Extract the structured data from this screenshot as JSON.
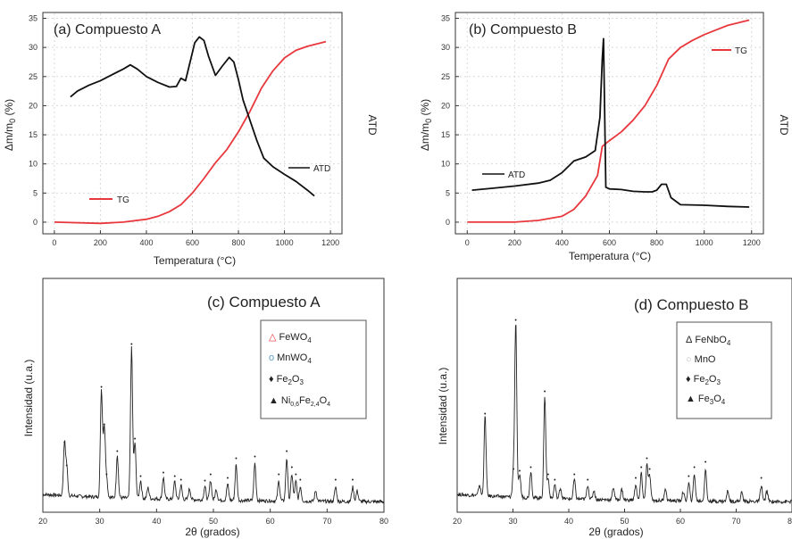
{
  "figure": {
    "panels": [
      {
        "id": "a",
        "title": "(a) Compuesto A",
        "xlabel": "Temperatura (°C)",
        "ylabel": "Δm/m",
        "ylabel_sub": "0",
        "ylabel_unit": " (%)",
        "right_label": "ATD",
        "legend": [
          {
            "label": "TG",
            "color": "#e8383d"
          },
          {
            "label": "ATD",
            "color": "#111111"
          }
        ]
      },
      {
        "id": "b",
        "title": "(b) Compuesto B",
        "xlabel": "Temperatura (°C)",
        "ylabel": "Δm/m",
        "ylabel_sub": "0",
        "ylabel_unit": " (%)",
        "right_label": "ATD",
        "legend": [
          {
            "label": "TG",
            "color": "#e8383d"
          },
          {
            "label": "ATD",
            "color": "#111111"
          }
        ]
      },
      {
        "id": "c",
        "title": "(c) Compuesto A",
        "xlabel": "2θ (grados)",
        "ylabel": "Intensidad (u.a.)",
        "legend_items": [
          {
            "marker": "△",
            "color": "#e8383d",
            "base": "FeWO",
            "sub": "4",
            "rest": ""
          },
          {
            "marker": "o",
            "color": "#5aa0c8",
            "base": "MnWO",
            "sub": "4",
            "rest": ""
          },
          {
            "marker": "♦",
            "color": "#111111",
            "base": "Fe",
            "sub": "2",
            "rest": "O",
            "sub2": "3"
          },
          {
            "marker": "▲",
            "color": "#111111",
            "base": "Ni",
            "sub": "0,6",
            "rest": "Fe",
            "sub2": "2,4",
            "rest2": "O",
            "sub3": "4"
          }
        ]
      },
      {
        "id": "d",
        "title": "(d) Compuesto B",
        "xlabel": "2θ (grados)",
        "ylabel": "Intensidad (u.a.)",
        "legend_items": [
          {
            "marker": "Δ",
            "color": "#111111",
            "base": "FeNbO",
            "sub": "4",
            "rest": ""
          },
          {
            "marker": "○",
            "color": "#bbbbbb",
            "base": "MnO",
            "sub": "",
            "rest": ""
          },
          {
            "marker": "♦",
            "color": "#111111",
            "base": "Fe",
            "sub": "2",
            "rest": "O",
            "sub2": "3"
          },
          {
            "marker": "▲",
            "color": "#111111",
            "base": "Fe",
            "sub": "3",
            "rest": "O",
            "sub2": "4"
          }
        ]
      }
    ]
  },
  "chart_data": [
    {
      "type": "line",
      "title": "(a) Compuesto A",
      "xlabel": "Temperatura (°C)",
      "ylabel": "Δm/m0 (%)",
      "xlim": [
        -50,
        1250
      ],
      "ylim": [
        -2,
        36
      ],
      "xticks": [
        0,
        200,
        400,
        600,
        800,
        1000,
        1200
      ],
      "yticks": [
        0,
        5,
        10,
        15,
        20,
        25,
        30,
        35
      ],
      "series": [
        {
          "name": "TG",
          "color": "#e8383d",
          "x": [
            0,
            200,
            300,
            400,
            450,
            500,
            550,
            600,
            650,
            700,
            750,
            800,
            850,
            900,
            950,
            1000,
            1050,
            1100,
            1150,
            1180
          ],
          "y": [
            0,
            -0.2,
            0,
            0.5,
            1.0,
            1.8,
            3.0,
            5.0,
            7.5,
            10.2,
            12.5,
            15.5,
            19.0,
            23.0,
            26.0,
            28.2,
            29.5,
            30.2,
            30.7,
            31.0
          ]
        },
        {
          "name": "ATD",
          "color": "#111111",
          "x": [
            70,
            100,
            150,
            200,
            250,
            300,
            330,
            360,
            400,
            450,
            500,
            530,
            550,
            570,
            590,
            610,
            630,
            650,
            670,
            700,
            730,
            760,
            780,
            800,
            820,
            850,
            880,
            910,
            950,
            1000,
            1050,
            1100,
            1130
          ],
          "y": [
            21.5,
            22.5,
            23.5,
            24.3,
            25.3,
            26.3,
            27.0,
            26.3,
            25.0,
            24.0,
            23.2,
            23.3,
            24.7,
            24.3,
            27.5,
            30.8,
            31.8,
            31.2,
            28.5,
            25.2,
            26.8,
            28.3,
            27.5,
            24.5,
            21.0,
            17.5,
            14.0,
            11.0,
            9.5,
            8.2,
            7.0,
            5.5,
            4.5
          ]
        }
      ]
    },
    {
      "type": "line",
      "title": "(b) Compuesto B",
      "xlabel": "Temperatura (°C)",
      "ylabel": "Δm/m0 (%)",
      "xlim": [
        -50,
        1250
      ],
      "ylim": [
        -2,
        36
      ],
      "xticks": [
        0,
        200,
        400,
        600,
        800,
        1000,
        1200
      ],
      "yticks": [
        0,
        5,
        10,
        15,
        20,
        25,
        30,
        35
      ],
      "series": [
        {
          "name": "TG",
          "color": "#e8383d",
          "x": [
            0,
            200,
            300,
            400,
            450,
            500,
            550,
            570,
            600,
            650,
            700,
            750,
            800,
            850,
            900,
            950,
            1000,
            1050,
            1100,
            1150,
            1190
          ],
          "y": [
            0,
            0,
            0.3,
            1.0,
            2.2,
            4.5,
            8.0,
            13.0,
            14.0,
            15.5,
            17.5,
            20.0,
            23.5,
            28.0,
            30.0,
            31.2,
            32.2,
            33.0,
            33.8,
            34.3,
            34.7
          ]
        },
        {
          "name": "ATD",
          "color": "#111111",
          "x": [
            20,
            100,
            200,
            300,
            350,
            400,
            450,
            500,
            540,
            560,
            570,
            575,
            585,
            600,
            650,
            700,
            750,
            780,
            800,
            820,
            840,
            860,
            900,
            1000,
            1100,
            1190
          ],
          "y": [
            5.5,
            5.8,
            6.2,
            6.7,
            7.2,
            8.5,
            10.5,
            11.2,
            12.3,
            18.0,
            28.0,
            31.5,
            6.0,
            5.7,
            5.6,
            5.3,
            5.2,
            5.2,
            5.5,
            6.5,
            6.5,
            4.2,
            3.0,
            2.9,
            2.7,
            2.6
          ]
        }
      ]
    },
    {
      "type": "line",
      "title": "(c) Compuesto A",
      "xlabel": "2θ (grados)",
      "ylabel": "Intensidad (u.a.)",
      "xlim": [
        20,
        80
      ],
      "xticks": [
        20,
        30,
        40,
        50,
        60,
        70,
        80
      ],
      "baseline": 9,
      "peaks": [
        {
          "x": 23.8,
          "h": 58
        },
        {
          "x": 24.2,
          "h": 32
        },
        {
          "x": 30.3,
          "h": 120
        },
        {
          "x": 30.8,
          "h": 78
        },
        {
          "x": 31.2,
          "h": 22
        },
        {
          "x": 33.1,
          "h": 48
        },
        {
          "x": 35.6,
          "h": 168
        },
        {
          "x": 36.2,
          "h": 62
        },
        {
          "x": 37.2,
          "h": 20
        },
        {
          "x": 38.5,
          "h": 12
        },
        {
          "x": 41.2,
          "h": 24
        },
        {
          "x": 43.2,
          "h": 20
        },
        {
          "x": 44.3,
          "h": 16
        },
        {
          "x": 45.8,
          "h": 12
        },
        {
          "x": 48.5,
          "h": 15
        },
        {
          "x": 49.5,
          "h": 22
        },
        {
          "x": 50.5,
          "h": 12
        },
        {
          "x": 52.5,
          "h": 18
        },
        {
          "x": 54.0,
          "h": 40
        },
        {
          "x": 57.3,
          "h": 42
        },
        {
          "x": 61.5,
          "h": 22
        },
        {
          "x": 62.9,
          "h": 48
        },
        {
          "x": 63.8,
          "h": 30
        },
        {
          "x": 64.5,
          "h": 22
        },
        {
          "x": 65.3,
          "h": 16
        },
        {
          "x": 68.0,
          "h": 12
        },
        {
          "x": 71.5,
          "h": 16
        },
        {
          "x": 74.5,
          "h": 16
        },
        {
          "x": 75.3,
          "h": 12
        }
      ]
    },
    {
      "type": "line",
      "title": "(d) Compuesto B",
      "xlabel": "2θ (grados)",
      "ylabel": "Intensidad (u.a.)",
      "xlim": [
        20,
        80
      ],
      "xticks": [
        20,
        30,
        40,
        50,
        60,
        70,
        80
      ],
      "baseline": 9,
      "peaks": [
        {
          "x": 24.0,
          "h": 12
        },
        {
          "x": 25.0,
          "h": 90
        },
        {
          "x": 30.1,
          "h": 28
        },
        {
          "x": 30.5,
          "h": 195
        },
        {
          "x": 31.2,
          "h": 26
        },
        {
          "x": 33.2,
          "h": 30
        },
        {
          "x": 35.7,
          "h": 115
        },
        {
          "x": 36.3,
          "h": 22
        },
        {
          "x": 37.5,
          "h": 16
        },
        {
          "x": 38.5,
          "h": 12
        },
        {
          "x": 41.0,
          "h": 22
        },
        {
          "x": 43.4,
          "h": 16
        },
        {
          "x": 44.5,
          "h": 10
        },
        {
          "x": 48.0,
          "h": 14
        },
        {
          "x": 49.5,
          "h": 12
        },
        {
          "x": 52.0,
          "h": 18
        },
        {
          "x": 53.0,
          "h": 30
        },
        {
          "x": 54.0,
          "h": 40
        },
        {
          "x": 54.5,
          "h": 28
        },
        {
          "x": 57.3,
          "h": 14
        },
        {
          "x": 60.5,
          "h": 10
        },
        {
          "x": 61.5,
          "h": 20
        },
        {
          "x": 62.5,
          "h": 30
        },
        {
          "x": 64.5,
          "h": 36
        },
        {
          "x": 68.5,
          "h": 12
        },
        {
          "x": 71.0,
          "h": 10
        },
        {
          "x": 74.5,
          "h": 18
        },
        {
          "x": 75.5,
          "h": 12
        }
      ]
    }
  ]
}
